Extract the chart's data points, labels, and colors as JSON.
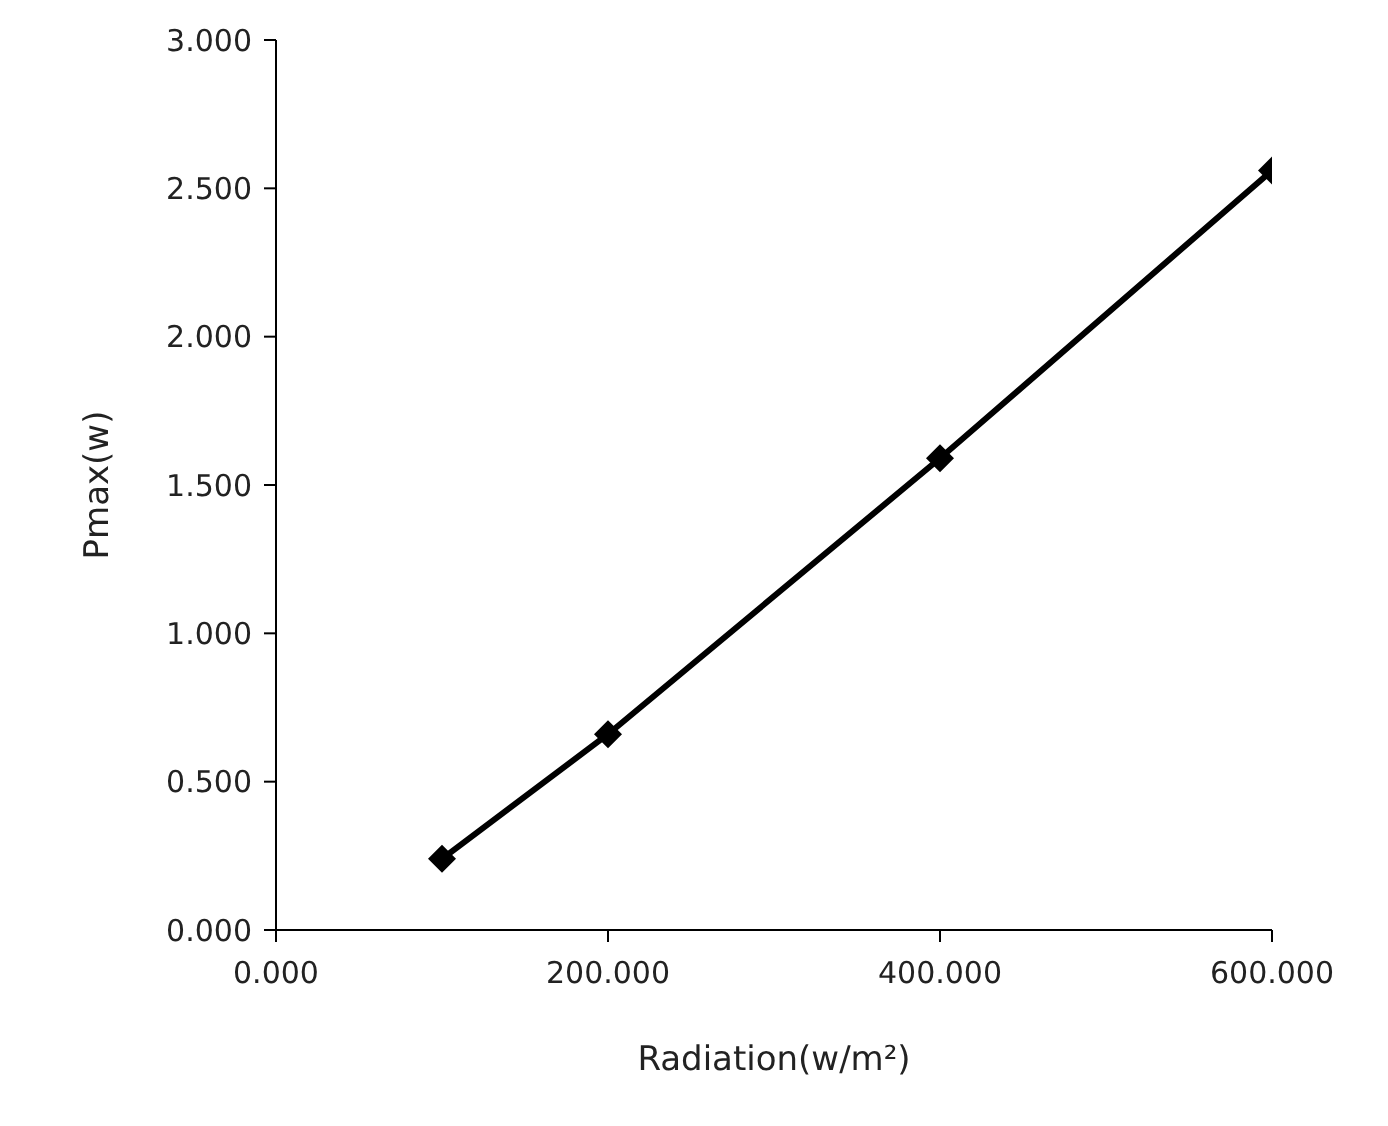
{
  "chart_data": {
    "type": "line",
    "xlabel": "Radiation(w/m²)",
    "ylabel": "Pmax(w)",
    "x": [
      100,
      200,
      400,
      600
    ],
    "series": [
      {
        "color": "#000000",
        "values": [
          0.24,
          0.66,
          1.59,
          2.56
        ]
      }
    ],
    "xlim": [
      0,
      600
    ],
    "xticks": [
      {
        "value": 0,
        "label": "0.000"
      },
      {
        "value": 200,
        "label": "200.000"
      },
      {
        "value": 400,
        "label": "400.000"
      },
      {
        "value": 600,
        "label": "600.000"
      }
    ],
    "ylim": [
      0,
      3
    ],
    "yticks": [
      {
        "value": 0,
        "label": "0.000"
      },
      {
        "value": 0.5,
        "label": "0.500"
      },
      {
        "value": 1,
        "label": "1.000"
      },
      {
        "value": 1.5,
        "label": "1.500"
      },
      {
        "value": 2,
        "label": "2.000"
      },
      {
        "value": 2.5,
        "label": "2.500"
      },
      {
        "value": 3,
        "label": "3.000"
      }
    ],
    "grid": false,
    "legend": false,
    "marker": "diamond",
    "line_style": "solid"
  }
}
